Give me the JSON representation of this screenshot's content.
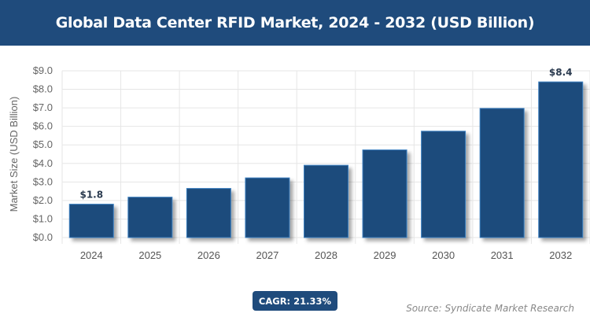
{
  "chart_data": {
    "type": "bar",
    "title": "Global Data Center RFID Market, 2024 - 2032 (USD Billion)",
    "xlabel": "",
    "ylabel": "Market Size (USD Billion)",
    "categories": [
      "2024",
      "2025",
      "2026",
      "2027",
      "2028",
      "2029",
      "2030",
      "2031",
      "2032"
    ],
    "values": [
      1.8,
      2.18,
      2.65,
      3.22,
      3.9,
      4.73,
      5.74,
      6.97,
      8.4
    ],
    "data_labels": {
      "0": "$1.8",
      "8": "$8.4"
    },
    "ylim": [
      0,
      9
    ],
    "yticks": [
      "$0.0",
      "$1.0",
      "$2.0",
      "$3.0",
      "$4.0",
      "$5.0",
      "$6.0",
      "$7.0",
      "$8.0",
      "$9.0"
    ],
    "grid": true,
    "bar_color": "#1f4b7c",
    "bar_edge_color": "#3a7fc0"
  },
  "cagr_label": "CAGR: 21.33%",
  "source": "Source: Syndicate Market Research"
}
